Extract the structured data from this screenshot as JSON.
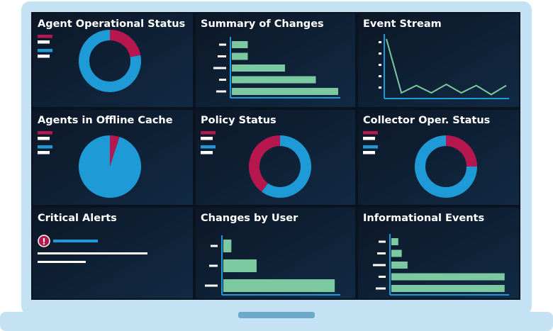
{
  "panels": [
    {
      "title": "Agent Operational Status",
      "type": "donut",
      "values": [
        22,
        78
      ],
      "colors": [
        "#b5174e",
        "#1e9bd7"
      ]
    },
    {
      "title": "Summary of Changes",
      "type": "hbar",
      "values": [
        15,
        15,
        50,
        79,
        100
      ],
      "xlim": [
        0,
        100
      ],
      "color": "#7cc8a0"
    },
    {
      "title": "Event Stream",
      "type": "line",
      "values": [
        100,
        5,
        18,
        5,
        20,
        5,
        18,
        2,
        18
      ],
      "ylim": [
        0,
        100
      ],
      "color": "#7cc8a0"
    },
    {
      "title": "Agents in Offline Cache",
      "type": "pie",
      "values": [
        5,
        95
      ],
      "colors": [
        "#b5174e",
        "#1e9bd7"
      ]
    },
    {
      "title": "Policy Status",
      "type": "donut",
      "values": [
        60,
        40
      ],
      "colors": [
        "#1e9bd7",
        "#b5174e"
      ]
    },
    {
      "title": "Collector Oper. Status",
      "type": "donut",
      "values": [
        25,
        75
      ],
      "colors": [
        "#b5174e",
        "#1e9bd7"
      ]
    },
    {
      "title": "Critical Alerts",
      "type": "alerts",
      "icon": "!"
    },
    {
      "title": "Changes by User",
      "type": "hbar",
      "values": [
        7,
        29,
        97
      ],
      "xlim": [
        0,
        100
      ],
      "color": "#7cc8a0"
    },
    {
      "title": "Informational Events",
      "type": "hbar",
      "values": [
        6,
        9,
        14,
        98,
        98
      ],
      "xlim": [
        0,
        100
      ],
      "color": "#7cc8a0"
    }
  ]
}
